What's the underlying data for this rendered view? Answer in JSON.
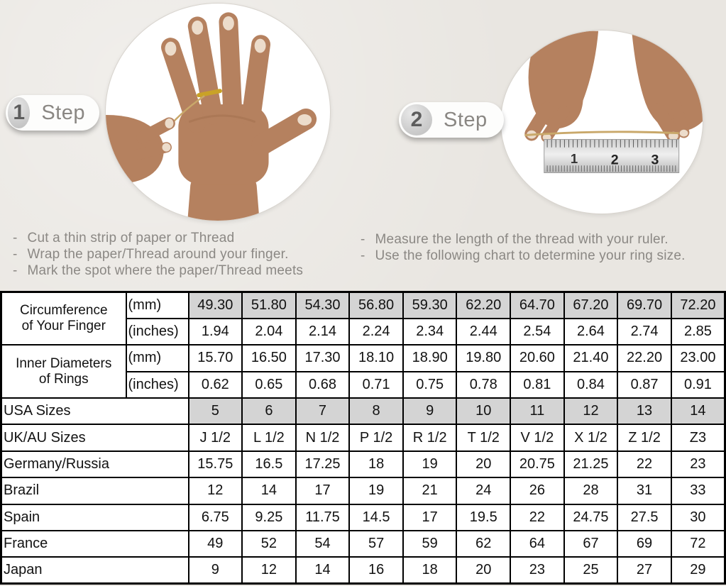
{
  "colors": {
    "background": "#e9e6e1",
    "table_shaded_cell": "#d4d4d4",
    "instruction_text": "#8b8884",
    "table_border": "#000000",
    "skin_tone": "#b5815f",
    "thread_gold": "#c9a86a"
  },
  "steps": [
    {
      "number": "1",
      "label": "Step",
      "image": "hand-with-thread-wrapped-around-finger",
      "instructions": [
        "Cut a thin strip of paper or Thread",
        "Wrap the paper/Thread around your finger.",
        "Mark the spot where the paper/Thread meets"
      ]
    },
    {
      "number": "2",
      "label": "Step",
      "image": "hands-measuring-thread-with-ruler",
      "instructions": [
        "Measure the length of the thread with your ruler.",
        "Use the following chart to determine your ring size."
      ]
    }
  ],
  "ruler_numbers": [
    "1",
    "2",
    "3"
  ],
  "chart_data": {
    "type": "table",
    "columns_per_row": 10,
    "header_groups": [
      {
        "label_lines": [
          "Circumference",
          "of Your Finger"
        ],
        "rows": [
          {
            "unit": "(mm)",
            "shaded": true,
            "values": [
              "49.30",
              "51.80",
              "54.30",
              "56.80",
              "59.30",
              "62.20",
              "64.70",
              "67.20",
              "69.70",
              "72.20"
            ]
          },
          {
            "unit": "(inches)",
            "shaded": false,
            "values": [
              "1.94",
              "2.04",
              "2.14",
              "2.24",
              "2.34",
              "2.44",
              "2.54",
              "2.64",
              "2.74",
              "2.85"
            ]
          }
        ]
      },
      {
        "label_lines": [
          "Inner Diameters",
          "of Rings"
        ],
        "rows": [
          {
            "unit": "(mm)",
            "shaded": false,
            "values": [
              "15.70",
              "16.50",
              "17.30",
              "18.10",
              "18.90",
              "19.80",
              "20.60",
              "21.40",
              "22.20",
              "23.00"
            ]
          },
          {
            "unit": "(inches)",
            "shaded": false,
            "values": [
              "0.62",
              "0.65",
              "0.68",
              "0.71",
              "0.75",
              "0.78",
              "0.81",
              "0.84",
              "0.87",
              "0.91"
            ]
          }
        ]
      }
    ],
    "size_rows": [
      {
        "label": "USA Sizes",
        "shaded": true,
        "values": [
          "5",
          "6",
          "7",
          "8",
          "9",
          "10",
          "11",
          "12",
          "13",
          "14"
        ]
      },
      {
        "label": "UK/AU Sizes",
        "shaded": false,
        "values": [
          "J 1/2",
          "L 1/2",
          "N 1/2",
          "P 1/2",
          "R 1/2",
          "T 1/2",
          "V 1/2",
          "X 1/2",
          "Z 1/2",
          "Z3"
        ]
      },
      {
        "label": "Germany/Russia",
        "shaded": false,
        "values": [
          "15.75",
          "16.5",
          "17.25",
          "18",
          "19",
          "20",
          "20.75",
          "21.25",
          "22",
          "23"
        ]
      },
      {
        "label": "Brazil",
        "shaded": false,
        "values": [
          "12",
          "14",
          "17",
          "19",
          "21",
          "24",
          "26",
          "28",
          "31",
          "33"
        ]
      },
      {
        "label": "Spain",
        "shaded": false,
        "values": [
          "6.75",
          "9.25",
          "11.75",
          "14.5",
          "17",
          "19.5",
          "22",
          "24.75",
          "27.5",
          "30"
        ]
      },
      {
        "label": "France",
        "shaded": false,
        "values": [
          "49",
          "52",
          "54",
          "57",
          "59",
          "62",
          "64",
          "67",
          "69",
          "72"
        ]
      },
      {
        "label": "Japan",
        "shaded": false,
        "values": [
          "9",
          "12",
          "14",
          "16",
          "18",
          "20",
          "23",
          "25",
          "27",
          "29"
        ]
      }
    ]
  }
}
